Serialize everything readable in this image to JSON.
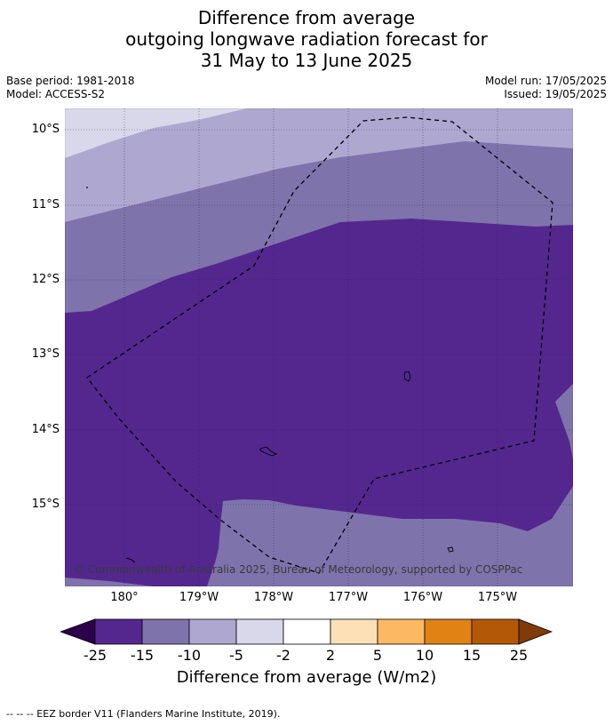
{
  "title": {
    "line1": "Difference from average",
    "line2": "outgoing longwave radiation forecast for",
    "line3": "31 May to 13 June 2025"
  },
  "meta": {
    "base_period": "Base period: 1981-2018",
    "model": "Model: ACCESS-S2",
    "model_run": "Model run: 17/05/2025",
    "issued": "Issued: 19/05/2025"
  },
  "map": {
    "latitude_labels": [
      "10°S",
      "11°S",
      "12°S",
      "13°S",
      "14°S",
      "15°S"
    ],
    "longitude_labels": [
      "180°",
      "179°W",
      "178°W",
      "177°W",
      "176°W",
      "175°W"
    ],
    "copyright": "© Commonwealth of Australia 2025, Bureau of Meteorology, supported by COSPPac",
    "colors": {
      "-25_-15": "#54278f",
      "-15_-10": "#7f73ac",
      "-10_-5": "#aea8d1",
      "-5_-2": "#d8d8ea",
      "-2_2": "#ffffff",
      "2_5": "#fee0b6",
      "5_10": "#fdb863",
      "10_15": "#e08214",
      "15_25": "#b35806",
      "under": "#2d004b",
      "over": "#7f3b08"
    }
  },
  "colorbar": {
    "ticks": [
      "-25",
      "-15",
      "-10",
      "-5",
      "-2",
      "2",
      "5",
      "10",
      "15",
      "25"
    ],
    "label": "Difference from average (W/m2)"
  },
  "footer": "-- -- -- EEZ border V11 (Flanders Marine Institute, 2019)."
}
